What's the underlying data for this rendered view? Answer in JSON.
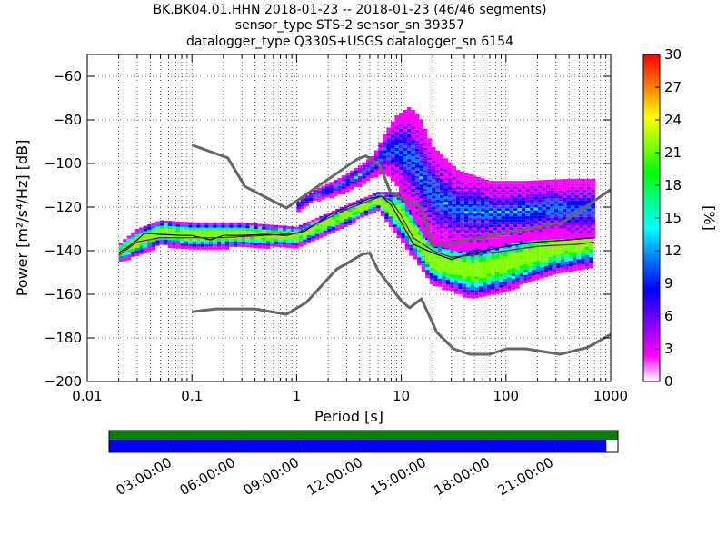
{
  "title": {
    "line1": "BK.BK04.01.HHN   2018-01-23 -- 2018-01-23  (46/46 segments)",
    "line2": "sensor_type STS-2 sensor_sn 39357",
    "line3": "datalogger_type Q330S+USGS datalogger_sn 6154"
  },
  "chart_data": {
    "type": "heatmap",
    "xlabel": "Period [s]",
    "ylabel": "Power [m²/s⁴/Hz] [dB]",
    "x_scale": "log",
    "xlim": [
      0.01,
      1000
    ],
    "ylim": [
      -200,
      -50
    ],
    "x_ticks": [
      0.01,
      0.1,
      1,
      10,
      100,
      1000
    ],
    "x_tick_labels": [
      "0.01",
      "0.1",
      "1",
      "10",
      "100",
      "1000"
    ],
    "y_ticks": [
      -200,
      -180,
      -160,
      -140,
      -120,
      -100,
      -80,
      -60
    ],
    "y_tick_labels": [
      "−200",
      "−180",
      "−160",
      "−140",
      "−120",
      "−100",
      "−80",
      "−60"
    ],
    "grid": true,
    "colorbar": {
      "label": "[%]",
      "min": 0,
      "max": 30,
      "ticks": [
        0,
        3,
        6,
        9,
        12,
        15,
        18,
        21,
        24,
        27,
        30
      ],
      "colormap": [
        "#ffffff",
        "#ff00ff",
        "#8000ff",
        "#0000ff",
        "#0080ff",
        "#00ffff",
        "#00ff80",
        "#00ff00",
        "#80ff00",
        "#ffff00",
        "#ff8000",
        "#ff0000"
      ]
    },
    "series": [
      {
        "name": "",
        "style": "reference",
        "color": "#666666",
        "x": [
          0.1,
          0.17,
          0.4,
          0.8,
          1.24,
          2.4,
          4.3,
          5,
          6,
          10,
          12,
          15.6,
          21.9,
          31.6,
          45,
          70,
          101,
          154,
          328,
          600,
          1000
        ],
        "y": [
          -168,
          -166.7,
          -166.7,
          -169.2,
          -163.7,
          -148.6,
          -141.5,
          -141.1,
          -149,
          -163,
          -166.2,
          -162.1,
          -177.5,
          -185,
          -187.5,
          -187.5,
          -185,
          -185,
          -187.5,
          -184.4,
          -178.4
        ]
      },
      {
        "name": "",
        "style": "reference",
        "color": "#666666",
        "x": [
          0.1,
          0.22,
          0.32,
          0.8,
          3.8,
          4.6,
          6.3,
          7.9,
          15.4,
          20,
          354,
          1000
        ],
        "y": [
          -91.5,
          -97.4,
          -110.5,
          -120.4,
          -98,
          -96.5,
          -101,
          -113.5,
          -120,
          -138,
          -126.8,
          -112
        ]
      },
      {
        "name": "",
        "style": "mode",
        "color": "#000000",
        "x": [
          0.02,
          0.025,
          0.03,
          0.035,
          0.05,
          0.08,
          0.1,
          0.15,
          0.2,
          0.3,
          0.5,
          0.8,
          1.2,
          2,
          3,
          5,
          6.5,
          8,
          10,
          13,
          20,
          30,
          50,
          100,
          200,
          400,
          700
        ],
        "y": [
          -141,
          -138,
          -135,
          -132,
          -132.5,
          -133,
          -133,
          -135,
          -133,
          -133,
          -132.5,
          -133,
          -131,
          -124,
          -120,
          -116,
          -115,
          -119,
          -127,
          -137,
          -141,
          -144,
          -141,
          -138,
          -136,
          -135,
          -134
        ]
      },
      {
        "name": "",
        "style": "mean",
        "color": "#800080",
        "x": [
          0.02,
          0.03,
          0.05,
          0.1,
          0.2,
          0.5,
          1,
          2,
          3,
          5,
          6.5,
          8,
          10,
          13,
          20,
          30,
          50,
          100,
          200,
          500,
          700
        ],
        "y": [
          -142,
          -136,
          -134,
          -134,
          -134,
          -133,
          -132,
          -125,
          -121,
          -117,
          -115,
          -117,
          -124,
          -134,
          -140,
          -143,
          -142,
          -140,
          -138,
          -137,
          -136
        ]
      }
    ],
    "density_bands": [
      {
        "x": [
          0.02,
          0.03,
          0.05,
          0.1,
          0.3,
          1,
          3,
          6,
          10,
          20,
          50,
          100,
          300,
          700
        ],
        "upper": [
          -137,
          -130,
          -126,
          -127,
          -127,
          -129,
          -119,
          -113,
          -113,
          -135,
          -137,
          -134,
          -127,
          -124
        ],
        "lower": [
          -145,
          -142,
          -137,
          -139,
          -138,
          -138,
          -128,
          -121,
          -135,
          -155,
          -162,
          -158,
          -150,
          -147
        ]
      },
      {
        "x": [
          1,
          1.5,
          2.5,
          4,
          5.5,
          7,
          9,
          12,
          15,
          20,
          35,
          70,
          150,
          400,
          700
        ],
        "upper": [
          -118,
          -112,
          -107,
          -101,
          -96,
          -86,
          -78,
          -74,
          -78,
          -92,
          -103,
          -108,
          -108,
          -107,
          -107
        ],
        "lower": [
          -122,
          -117,
          -114,
          -110,
          -106,
          -104,
          -110,
          -120,
          -130,
          -137,
          -140,
          -138,
          -135,
          -134,
          -134
        ]
      }
    ]
  },
  "timeline": {
    "labels": [
      "03:00:00",
      "06:00:00",
      "09:00:00",
      "12:00:00",
      "15:00:00",
      "18:00:00",
      "21:00:00"
    ],
    "tick_hours": [
      3,
      6,
      9,
      12,
      15,
      18,
      21
    ],
    "span_hours": 24,
    "green_fraction": 1.0,
    "blue_fraction": 0.977,
    "colors": {
      "green": "#008000",
      "blue": "#0000ff"
    }
  }
}
